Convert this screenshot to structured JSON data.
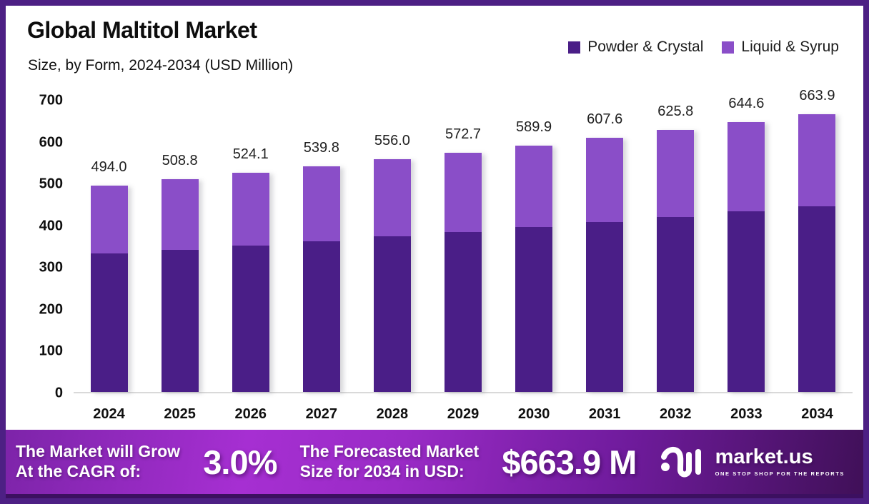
{
  "header": {
    "title": "Global Maltitol Market",
    "subtitle": "Size, by Form, 2024-2034 (USD Million)"
  },
  "legend": [
    {
      "label": "Powder & Crystal",
      "color": "#4a1e87"
    },
    {
      "label": "Liquid & Syrup",
      "color": "#8a4ec8"
    }
  ],
  "chart_data": {
    "type": "bar",
    "stacked": true,
    "title": "Global Maltitol Market",
    "subtitle": "Size, by Form, 2024-2034 (USD Million)",
    "ylabel": "USD Million",
    "ylim": [
      0,
      700
    ],
    "yticks": [
      0,
      100,
      200,
      300,
      400,
      500,
      600,
      700
    ],
    "grid": false,
    "legend_position": "top-right",
    "categories": [
      "2024",
      "2025",
      "2026",
      "2027",
      "2028",
      "2029",
      "2030",
      "2031",
      "2032",
      "2033",
      "2034"
    ],
    "series": [
      {
        "name": "Powder & Crystal",
        "color": "#4a1e87",
        "values": [
          330.5,
          340.4,
          350.6,
          361.1,
          372.0,
          383.1,
          394.6,
          406.5,
          418.7,
          431.2,
          444.2
        ]
      },
      {
        "name": "Liquid & Syrup",
        "color": "#8a4ec8",
        "values": [
          163.5,
          168.4,
          173.5,
          178.7,
          184.0,
          189.6,
          195.3,
          201.1,
          207.1,
          213.4,
          219.7
        ]
      }
    ],
    "totals": [
      494.0,
      508.8,
      524.1,
      539.8,
      556.0,
      572.7,
      589.9,
      607.6,
      625.8,
      644.6,
      663.9
    ],
    "total_labels": [
      "494.0",
      "508.8",
      "524.1",
      "539.8",
      "556.0",
      "572.7",
      "589.9",
      "607.6",
      "625.8",
      "644.6",
      "663.9"
    ]
  },
  "banner": {
    "cagr_line1": "The Market will Grow",
    "cagr_line2": "At the CAGR of:",
    "cagr_value": "3.0%",
    "forecast_line1": "The Forecasted Market",
    "forecast_line2": "Size for 2034 in USD:",
    "forecast_value": "$663.9 M",
    "logo_text": "market.us",
    "logo_tagline": "ONE STOP SHOP FOR THE REPORTS"
  }
}
